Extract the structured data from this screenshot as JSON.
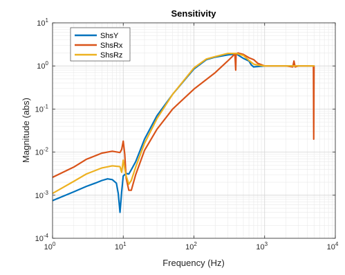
{
  "chart_data": {
    "type": "line",
    "title": "Sensitivity",
    "xlabel": "Frequency  (Hz)",
    "ylabel": "Magnitude (abs)",
    "xscale": "log",
    "yscale": "log",
    "xlim": [
      1,
      10000
    ],
    "ylim": [
      0.0001,
      10
    ],
    "x_ticks": [
      {
        "base": "10",
        "exp": "0"
      },
      {
        "base": "10",
        "exp": "1"
      },
      {
        "base": "10",
        "exp": "2"
      },
      {
        "base": "10",
        "exp": "3"
      },
      {
        "base": "10",
        "exp": "4"
      }
    ],
    "y_ticks": [
      {
        "base": "10",
        "exp": "-4"
      },
      {
        "base": "10",
        "exp": "-3"
      },
      {
        "base": "10",
        "exp": "-2"
      },
      {
        "base": "10",
        "exp": "-1"
      },
      {
        "base": "10",
        "exp": "0"
      },
      {
        "base": "10",
        "exp": "1"
      }
    ],
    "grid": true,
    "minor_grid": true,
    "legend_position": "top-left",
    "series": [
      {
        "name": "ShsY",
        "color": "#0072BD",
        "points": [
          [
            1,
            0.00075
          ],
          [
            2,
            0.0012
          ],
          [
            3,
            0.0016
          ],
          [
            4,
            0.0019
          ],
          [
            5,
            0.0022
          ],
          [
            6,
            0.0024
          ],
          [
            7,
            0.0023
          ],
          [
            8,
            0.0019
          ],
          [
            8.5,
            0.0011
          ],
          [
            9,
            0.0004
          ],
          [
            9.5,
            0.0012
          ],
          [
            10,
            0.0028
          ],
          [
            11,
            0.0032
          ],
          [
            12,
            0.0031
          ],
          [
            13,
            0.0039
          ],
          [
            15,
            0.006
          ],
          [
            20,
            0.02
          ],
          [
            30,
            0.07
          ],
          [
            50,
            0.22
          ],
          [
            80,
            0.55
          ],
          [
            100,
            0.85
          ],
          [
            150,
            1.4
          ],
          [
            200,
            1.6
          ],
          [
            300,
            1.8
          ],
          [
            400,
            1.9
          ],
          [
            430,
            1.75
          ],
          [
            500,
            1.5
          ],
          [
            600,
            1.3
          ],
          [
            650,
            1.05
          ],
          [
            700,
            0.95
          ],
          [
            1000,
            1.0
          ],
          [
            2000,
            1.0
          ],
          [
            3000,
            1.0
          ],
          [
            4000,
            1.0
          ],
          [
            5000,
            1.0
          ]
        ]
      },
      {
        "name": "ShsRx",
        "color": "#D95319",
        "points": [
          [
            1,
            0.0026
          ],
          [
            2,
            0.0045
          ],
          [
            3,
            0.0068
          ],
          [
            5,
            0.0095
          ],
          [
            7,
            0.0105
          ],
          [
            9,
            0.0098
          ],
          [
            9.5,
            0.0115
          ],
          [
            10,
            0.018
          ],
          [
            10.5,
            0.009
          ],
          [
            11,
            0.0025
          ],
          [
            12,
            0.0013
          ],
          [
            13,
            0.0013
          ],
          [
            15,
            0.003
          ],
          [
            20,
            0.011
          ],
          [
            30,
            0.034
          ],
          [
            50,
            0.1
          ],
          [
            100,
            0.29
          ],
          [
            200,
            0.7
          ],
          [
            300,
            1.3
          ],
          [
            380,
            1.9
          ],
          [
            390,
            0.8
          ],
          [
            395,
            1.9
          ],
          [
            420,
            2.0
          ],
          [
            500,
            1.85
          ],
          [
            600,
            1.55
          ],
          [
            700,
            1.4
          ],
          [
            800,
            1.15
          ],
          [
            1000,
            1.0
          ],
          [
            2000,
            1.0
          ],
          [
            2500,
            0.95
          ],
          [
            2600,
            1.3
          ],
          [
            2700,
            0.95
          ],
          [
            3000,
            1.0
          ],
          [
            4000,
            1.0
          ],
          [
            4900,
            1.0
          ],
          [
            4950,
            0.02
          ],
          [
            5000,
            1.0
          ]
        ]
      },
      {
        "name": "ShsRz",
        "color": "#EDB120",
        "points": [
          [
            1,
            0.0011
          ],
          [
            2,
            0.0021
          ],
          [
            3,
            0.0031
          ],
          [
            5,
            0.0043
          ],
          [
            7,
            0.0048
          ],
          [
            9,
            0.0046
          ],
          [
            9.5,
            0.0034
          ],
          [
            10,
            0.0065
          ],
          [
            11,
            0.0028
          ],
          [
            12,
            0.0018
          ],
          [
            13,
            0.0022
          ],
          [
            15,
            0.0045
          ],
          [
            20,
            0.016
          ],
          [
            30,
            0.06
          ],
          [
            50,
            0.22
          ],
          [
            100,
            0.9
          ],
          [
            150,
            1.45
          ],
          [
            200,
            1.65
          ],
          [
            300,
            1.95
          ],
          [
            400,
            1.95
          ],
          [
            500,
            1.75
          ],
          [
            600,
            1.35
          ],
          [
            700,
            1.1
          ],
          [
            800,
            1.05
          ],
          [
            1000,
            1.0
          ],
          [
            2000,
            1.0
          ],
          [
            3000,
            1.0
          ],
          [
            5000,
            1.0
          ]
        ]
      }
    ]
  }
}
